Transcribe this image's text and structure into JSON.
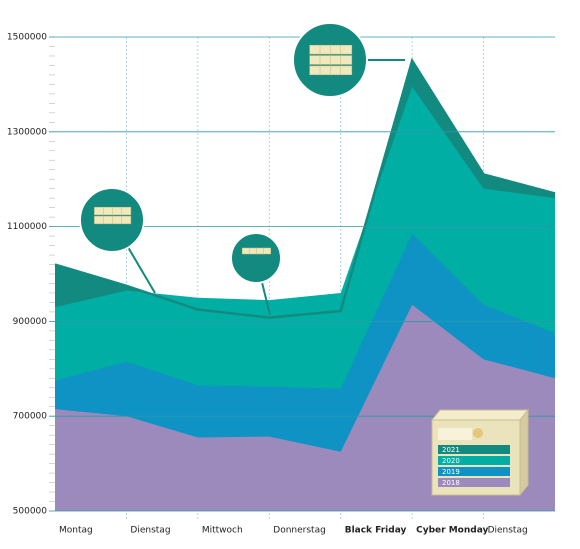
{
  "chart_data": {
    "type": "area",
    "categories": [
      "Montag",
      "Dienstag",
      "Mittwoch",
      "Donnerstag",
      "Black Friday",
      "Cyber Monday",
      "Dienstag",
      null
    ],
    "series": [
      {
        "name": "2021",
        "color": "#138a80",
        "values": [
          1020000,
          975000,
          925000,
          908000,
          922000,
          1450000,
          1210000,
          1170000
        ]
      },
      {
        "name": "2020",
        "color": "#00aea4",
        "values": [
          930000,
          965000,
          950000,
          945000,
          960000,
          1395000,
          1180000,
          1160000
        ]
      },
      {
        "name": "2019",
        "color": "#0e93c4",
        "values": [
          775000,
          815000,
          765000,
          762000,
          758000,
          1085000,
          935000,
          875000
        ]
      },
      {
        "name": "2018",
        "color": "#9b8abb",
        "values": [
          715000,
          700000,
          655000,
          657000,
          625000,
          935000,
          820000,
          780000
        ]
      }
    ],
    "ylim": [
      500000,
      1500000
    ],
    "yticks": [
      500000,
      700000,
      900000,
      1100000,
      1300000,
      1500000
    ],
    "grid": true
  }
}
